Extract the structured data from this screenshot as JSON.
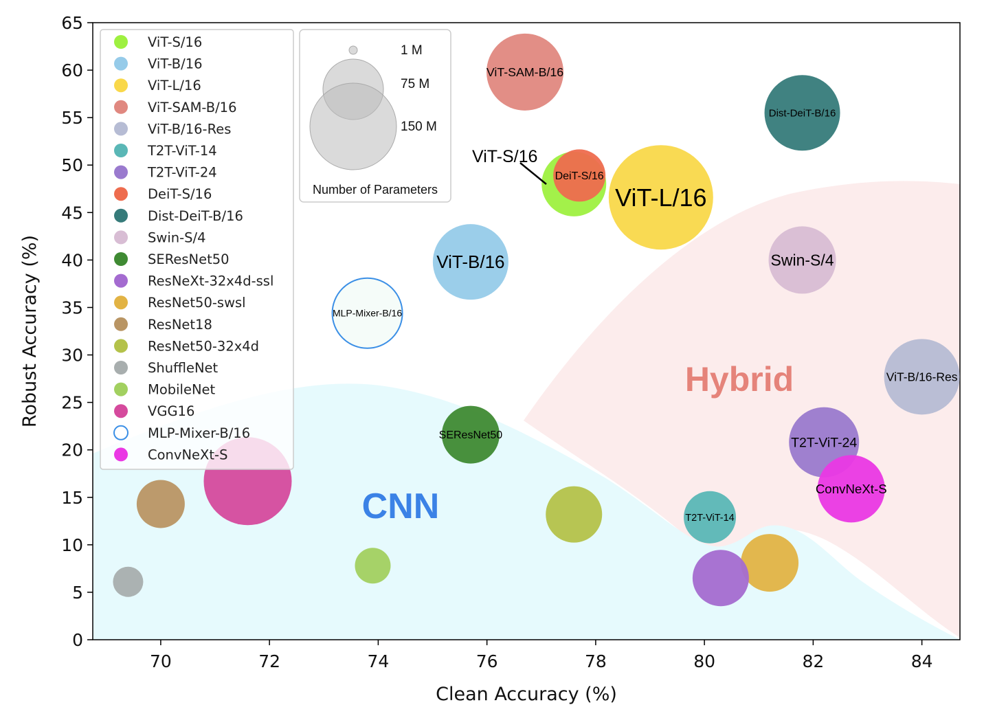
{
  "chart_data": {
    "type": "scatter",
    "xlabel": "Clean Accuracy (%)",
    "ylabel": "Robust Accuracy (%)",
    "xlim": [
      68.75,
      84.7
    ],
    "ylim": [
      0,
      65
    ],
    "x_ticks": [
      "70",
      "72",
      "74",
      "76",
      "78",
      "80",
      "82",
      "84"
    ],
    "y_ticks": [
      "0",
      "5",
      "10",
      "15",
      "20",
      "25",
      "30",
      "35",
      "40",
      "45",
      "50",
      "55",
      "60",
      "65"
    ],
    "legend_position": "upper-left",
    "series": [
      {
        "name": "ViT-S/16",
        "color": "#9ef040",
        "points": [
          {
            "x": 77.6,
            "y": 48.0,
            "r": 47,
            "label": "",
            "hollow": false
          }
        ]
      },
      {
        "name": "ViT-B/16",
        "color": "#96cbe9",
        "points": [
          {
            "x": 75.7,
            "y": 39.8,
            "r": 55,
            "label": "ViT-B/16",
            "hollow": false
          }
        ]
      },
      {
        "name": "ViT-L/16",
        "color": "#f9d84a",
        "points": [
          {
            "x": 79.2,
            "y": 46.6,
            "r": 76,
            "label": "ViT-L/16",
            "hollow": false
          }
        ]
      },
      {
        "name": "ViT-SAM-B/16",
        "color": "#e08880",
        "points": [
          {
            "x": 76.7,
            "y": 59.8,
            "r": 56,
            "label": "ViT-SAM-B/16",
            "hollow": false
          }
        ]
      },
      {
        "name": "ViT-B/16-Res",
        "color": "#b6bcd4",
        "points": [
          {
            "x": 84.0,
            "y": 27.7,
            "r": 55,
            "label": "ViT-B/16-Res",
            "hollow": false
          }
        ]
      },
      {
        "name": "T2T-ViT-14",
        "color": "#5ab7b6",
        "points": [
          {
            "x": 80.1,
            "y": 12.9,
            "r": 38,
            "label": "T2T-ViT-14",
            "hollow": false
          }
        ]
      },
      {
        "name": "T2T-ViT-24",
        "color": "#9a7ace",
        "points": [
          {
            "x": 82.2,
            "y": 20.8,
            "r": 51,
            "label": "T2T-ViT-24",
            "hollow": false
          }
        ]
      },
      {
        "name": "DeiT-S/16",
        "color": "#ee6c4e",
        "points": [
          {
            "x": 77.7,
            "y": 48.9,
            "r": 38,
            "label": "DeiT-S/16",
            "hollow": false
          }
        ]
      },
      {
        "name": "Dist-DeiT-B/16",
        "color": "#367b7a",
        "points": [
          {
            "x": 81.8,
            "y": 55.5,
            "r": 55,
            "label": "Dist-DeiT-B/16",
            "hollow": false
          }
        ]
      },
      {
        "name": "Swin-S/4",
        "color": "#d8bdd4",
        "points": [
          {
            "x": 81.8,
            "y": 40.0,
            "r": 49,
            "label": "Swin-S/4",
            "hollow": false
          }
        ]
      },
      {
        "name": "SEResNet50",
        "color": "#3f8a33",
        "points": [
          {
            "x": 75.7,
            "y": 21.6,
            "r": 42,
            "label": "SEResNet50",
            "hollow": false
          }
        ]
      },
      {
        "name": "ResNeXt-32x4d-ssl",
        "color": "#a46bd0",
        "points": [
          {
            "x": 80.3,
            "y": 6.5,
            "r": 41,
            "label": "",
            "hollow": false
          }
        ]
      },
      {
        "name": "ResNet50-swsl",
        "color": "#e2b344",
        "points": [
          {
            "x": 81.2,
            "y": 8.1,
            "r": 42,
            "label": "",
            "hollow": false
          }
        ]
      },
      {
        "name": "ResNet18",
        "color": "#b99564",
        "points": [
          {
            "x": 70.0,
            "y": 14.3,
            "r": 35,
            "label": "",
            "hollow": false
          }
        ]
      },
      {
        "name": "ResNet50-32x4d",
        "color": "#b4c24a",
        "points": [
          {
            "x": 77.6,
            "y": 13.2,
            "r": 41,
            "label": "",
            "hollow": false
          }
        ]
      },
      {
        "name": "ShuffleNet",
        "color": "#a8aeae",
        "points": [
          {
            "x": 69.4,
            "y": 6.1,
            "r": 22,
            "label": "",
            "hollow": false
          }
        ]
      },
      {
        "name": "MobileNet",
        "color": "#a2d060",
        "points": [
          {
            "x": 73.9,
            "y": 7.8,
            "r": 26,
            "label": "",
            "hollow": false
          }
        ]
      },
      {
        "name": "VGG16",
        "color": "#d54a9d",
        "points": [
          {
            "x": 71.6,
            "y": 16.7,
            "r": 64,
            "label": "",
            "hollow": false
          }
        ]
      },
      {
        "name": "MLP-Mixer-B/16",
        "color": "#3b8fe6",
        "points": [
          {
            "x": 73.8,
            "y": 34.4,
            "r": 51,
            "label": "MLP-Mixer-B/16",
            "hollow": true
          }
        ]
      },
      {
        "name": "ConvNeXt-S",
        "color": "#ea38e4",
        "points": [
          {
            "x": 82.7,
            "y": 15.9,
            "r": 49,
            "label": "ConvNeXt-S",
            "hollow": false
          }
        ]
      }
    ],
    "annotations": {
      "vit_s_callout": "ViT-S/16",
      "cnn_region": "CNN",
      "hybrid_region": "Hybrid",
      "cnn_color": "#3b82e6",
      "hybrid_color": "#e5837a",
      "cnn_fill": "#e6fafd",
      "hybrid_fill": "#fcecec"
    },
    "size_legend": {
      "title": "Number of Parameters",
      "entries": [
        "1 M",
        "75 M",
        "150 M"
      ]
    }
  }
}
